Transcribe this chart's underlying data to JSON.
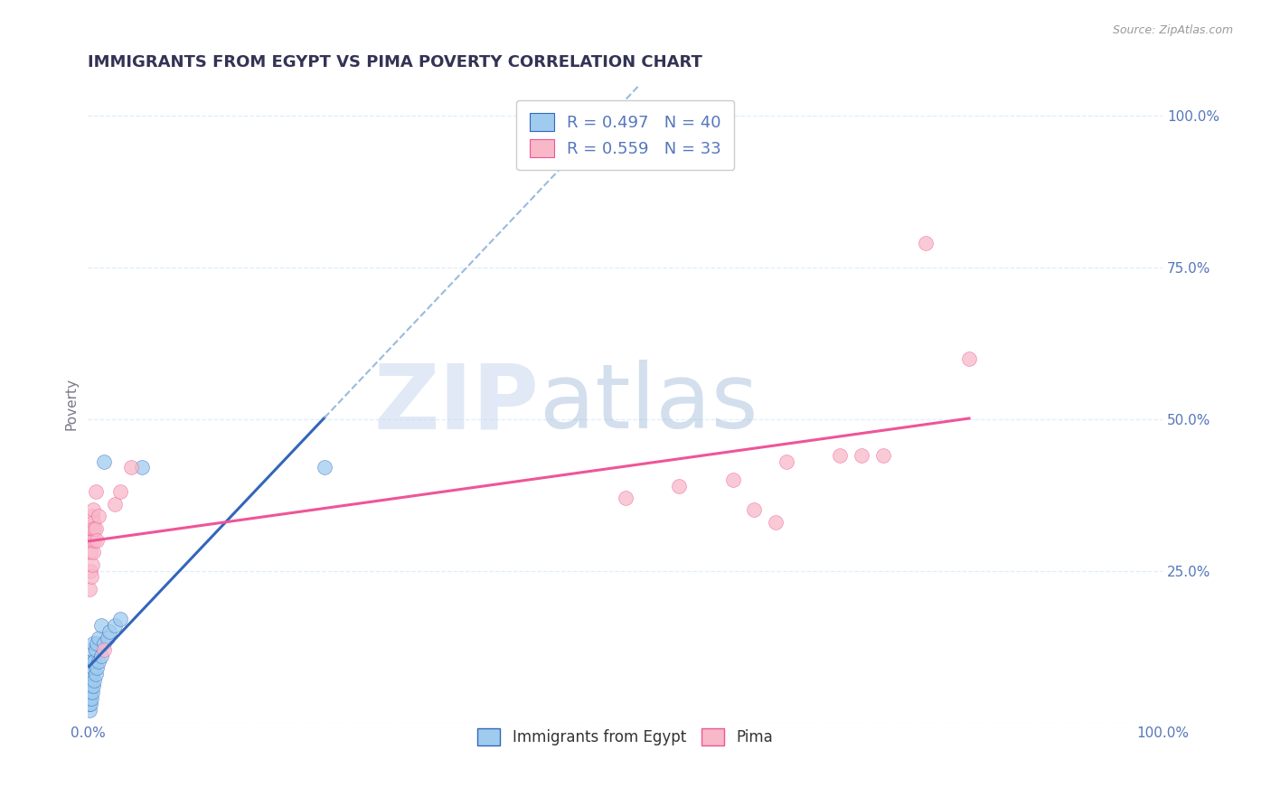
{
  "title": "IMMIGRANTS FROM EGYPT VS PIMA POVERTY CORRELATION CHART",
  "source_text": "Source: ZipAtlas.com",
  "ylabel": "Poverty",
  "R_blue": 0.497,
  "N_blue": 40,
  "R_pink": 0.559,
  "N_pink": 33,
  "blue_color": "#9FCBEE",
  "pink_color": "#F8B8C8",
  "blue_line_color": "#3366BB",
  "pink_line_color": "#EE5599",
  "dashed_line_color": "#99BBDD",
  "blue_scatter": [
    [
      0.001,
      0.02
    ],
    [
      0.001,
      0.03
    ],
    [
      0.001,
      0.04
    ],
    [
      0.001,
      0.05
    ],
    [
      0.001,
      0.06
    ],
    [
      0.001,
      0.07
    ],
    [
      0.001,
      0.08
    ],
    [
      0.001,
      0.09
    ],
    [
      0.002,
      0.03
    ],
    [
      0.002,
      0.05
    ],
    [
      0.002,
      0.07
    ],
    [
      0.002,
      0.1
    ],
    [
      0.003,
      0.04
    ],
    [
      0.003,
      0.06
    ],
    [
      0.003,
      0.08
    ],
    [
      0.003,
      0.1
    ],
    [
      0.004,
      0.05
    ],
    [
      0.004,
      0.08
    ],
    [
      0.004,
      0.12
    ],
    [
      0.005,
      0.06
    ],
    [
      0.005,
      0.09
    ],
    [
      0.005,
      0.13
    ],
    [
      0.006,
      0.07
    ],
    [
      0.006,
      0.1
    ],
    [
      0.007,
      0.08
    ],
    [
      0.007,
      0.12
    ],
    [
      0.008,
      0.09
    ],
    [
      0.008,
      0.13
    ],
    [
      0.01,
      0.1
    ],
    [
      0.01,
      0.14
    ],
    [
      0.012,
      0.11
    ],
    [
      0.012,
      0.16
    ],
    [
      0.015,
      0.13
    ],
    [
      0.015,
      0.43
    ],
    [
      0.018,
      0.14
    ],
    [
      0.02,
      0.15
    ],
    [
      0.025,
      0.16
    ],
    [
      0.03,
      0.17
    ],
    [
      0.05,
      0.42
    ],
    [
      0.22,
      0.42
    ]
  ],
  "pink_scatter": [
    [
      0.001,
      0.22
    ],
    [
      0.002,
      0.25
    ],
    [
      0.002,
      0.28
    ],
    [
      0.003,
      0.24
    ],
    [
      0.003,
      0.3
    ],
    [
      0.003,
      0.32
    ],
    [
      0.004,
      0.26
    ],
    [
      0.004,
      0.32
    ],
    [
      0.004,
      0.34
    ],
    [
      0.005,
      0.28
    ],
    [
      0.005,
      0.33
    ],
    [
      0.005,
      0.35
    ],
    [
      0.006,
      0.3
    ],
    [
      0.006,
      0.32
    ],
    [
      0.007,
      0.32
    ],
    [
      0.007,
      0.38
    ],
    [
      0.008,
      0.3
    ],
    [
      0.01,
      0.34
    ],
    [
      0.015,
      0.12
    ],
    [
      0.025,
      0.36
    ],
    [
      0.03,
      0.38
    ],
    [
      0.04,
      0.42
    ],
    [
      0.5,
      0.37
    ],
    [
      0.55,
      0.39
    ],
    [
      0.6,
      0.4
    ],
    [
      0.62,
      0.35
    ],
    [
      0.64,
      0.33
    ],
    [
      0.65,
      0.43
    ],
    [
      0.7,
      0.44
    ],
    [
      0.72,
      0.44
    ],
    [
      0.74,
      0.44
    ],
    [
      0.78,
      0.79
    ],
    [
      0.82,
      0.6
    ]
  ],
  "xlim": [
    0.0,
    1.0
  ],
  "ylim": [
    0.0,
    1.05
  ],
  "yticks": [
    0.0,
    0.25,
    0.5,
    0.75,
    1.0
  ],
  "ytick_labels": [
    "",
    "25.0%",
    "50.0%",
    "75.0%",
    "100.0%"
  ],
  "grid_color": "#DDEEFF",
  "background_color": "#FFFFFF",
  "title_color": "#333355",
  "title_fontsize": 13,
  "axis_label_color": "#777788",
  "tick_label_color": "#5577BB",
  "watermark_zip_color": "#C8D8EE",
  "watermark_atlas_color": "#A8C0DC"
}
